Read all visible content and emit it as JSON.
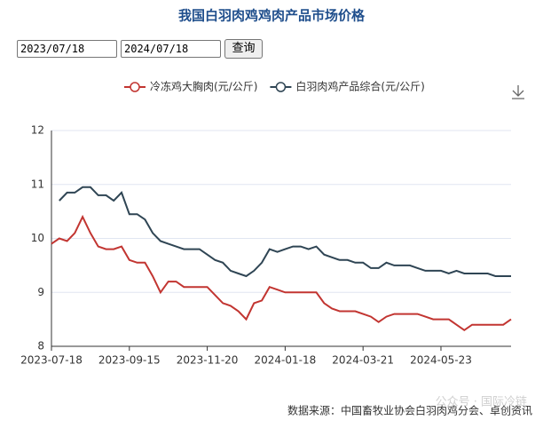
{
  "controls": {
    "start_date": "2023/07/18",
    "end_date": "2024/07/18",
    "button": "查询"
  },
  "chart_data": {
    "type": "line",
    "title": "我国白羽肉鸡鸡肉产品市场价格",
    "categories": [
      "2023-07-18",
      null,
      null,
      null,
      null,
      null,
      null,
      null,
      null,
      null,
      "2023-09-15",
      null,
      null,
      null,
      null,
      null,
      null,
      null,
      null,
      null,
      "2023-11-20",
      null,
      null,
      null,
      null,
      null,
      null,
      null,
      null,
      null,
      "2024-01-18",
      null,
      null,
      null,
      null,
      null,
      null,
      null,
      null,
      null,
      "2024-03-21",
      null,
      null,
      null,
      null,
      null,
      null,
      null,
      null,
      null,
      "2024-05-23",
      null,
      null,
      null,
      null,
      null,
      null,
      null,
      null,
      null
    ],
    "series": [
      {
        "name": "冷冻鸡大胸肉(元/公斤)",
        "color": "#c23531",
        "values": [
          9.9,
          10.0,
          9.95,
          10.1,
          10.4,
          10.1,
          9.85,
          9.8,
          9.8,
          9.85,
          9.6,
          9.55,
          9.55,
          9.3,
          9.0,
          9.2,
          9.2,
          9.1,
          9.1,
          9.1,
          9.1,
          8.95,
          8.8,
          8.75,
          8.65,
          8.5,
          8.8,
          8.85,
          9.1,
          9.05,
          9.0,
          9.0,
          9.0,
          9.0,
          9.0,
          8.8,
          8.7,
          8.65,
          8.65,
          8.65,
          8.6,
          8.55,
          8.45,
          8.55,
          8.6,
          8.6,
          8.6,
          8.6,
          8.55,
          8.5,
          8.5,
          8.5,
          8.4,
          8.3,
          8.4,
          8.4,
          8.4,
          8.4,
          8.4,
          8.5
        ]
      },
      {
        "name": "白羽肉鸡产品综合(元/公斤)",
        "color": "#2f4554",
        "values": [
          null,
          10.7,
          10.85,
          10.85,
          10.95,
          10.95,
          10.8,
          10.8,
          10.7,
          10.85,
          10.45,
          10.45,
          10.35,
          10.1,
          9.95,
          9.9,
          9.85,
          9.8,
          9.8,
          9.8,
          9.7,
          9.6,
          9.55,
          9.4,
          9.35,
          9.3,
          9.4,
          9.55,
          9.8,
          9.75,
          9.8,
          9.85,
          9.85,
          9.8,
          9.85,
          9.7,
          9.65,
          9.6,
          9.6,
          9.55,
          9.55,
          9.45,
          9.45,
          9.55,
          9.5,
          9.5,
          9.5,
          9.45,
          9.4,
          9.4,
          9.4,
          9.35,
          9.4,
          9.35,
          9.35,
          9.35,
          9.35,
          9.3,
          9.3,
          9.3
        ]
      }
    ],
    "ylim": [
      8,
      12
    ],
    "yticks": [
      8,
      9,
      10,
      11,
      12
    ],
    "grid": true
  },
  "source": "数据来源：中国畜牧业协会白羽肉鸡分会、卓创资讯",
  "watermark": "公众号 · 国际冷链"
}
